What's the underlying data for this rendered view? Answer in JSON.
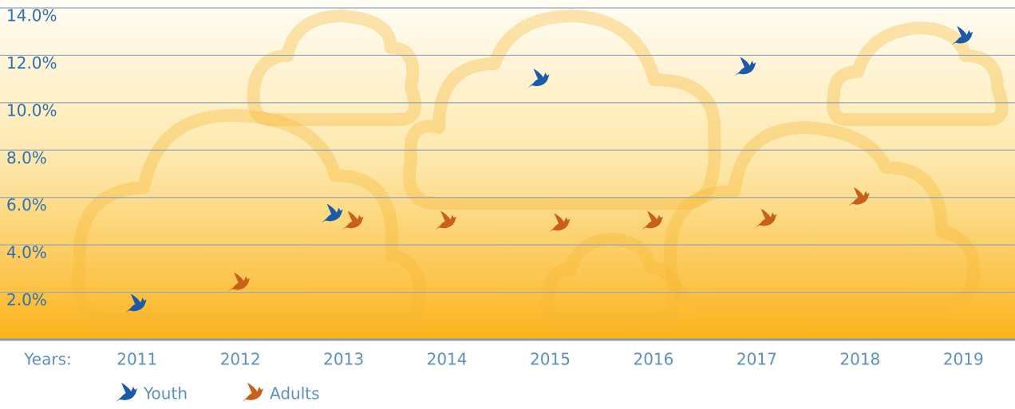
{
  "chart_data": {
    "type": "scatter",
    "x_label": "Years:",
    "categories": [
      "2011",
      "2012",
      "2013",
      "2014",
      "2015",
      "2016",
      "2017",
      "2018",
      "2019"
    ],
    "series": [
      {
        "name": "Youth",
        "color": "#1a5aa8",
        "values": [
          1.5,
          null,
          5.3,
          null,
          11.0,
          null,
          11.5,
          null,
          12.8
        ]
      },
      {
        "name": "Adults",
        "color": "#c8601a",
        "values": [
          null,
          2.4,
          5.0,
          5.0,
          4.9,
          5.0,
          5.1,
          6.0,
          null
        ]
      }
    ],
    "ylim": [
      0,
      14
    ],
    "yticks": [
      {
        "value": 2,
        "label": "2.0%"
      },
      {
        "value": 4,
        "label": "4.0%"
      },
      {
        "value": 6,
        "label": "6.0%"
      },
      {
        "value": 8,
        "label": "8.0%"
      },
      {
        "value": 10,
        "label": "10.0%"
      },
      {
        "value": 12,
        "label": "12.0%"
      },
      {
        "value": 14,
        "label": "14.0%"
      }
    ],
    "grid": true
  }
}
